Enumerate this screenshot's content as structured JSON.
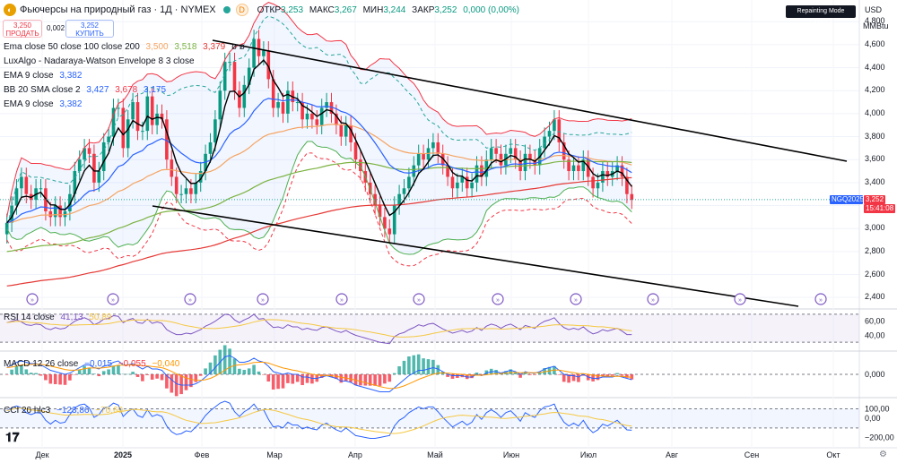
{
  "header": {
    "title": "Фьючерсы на природный газ · 1Д · NYMEX",
    "badge": "D",
    "open_label": "ОТКР",
    "open": "3,253",
    "high_label": "МАКС",
    "high": "3,267",
    "low_label": "МИН",
    "low": "3,244",
    "close_label": "ЗАКР",
    "close": "3,252",
    "change": "0,000 (0,00%)"
  },
  "trade": {
    "sell_price": "3,250",
    "sell_label": "ПРОДАТЬ",
    "spread": "0,002",
    "buy_price": "3,252",
    "buy_label": "КУПИТЬ"
  },
  "legends": {
    "ema": {
      "label": "Ema close 50 close 100 close 200",
      "v1": "3,500",
      "v2": "3,518",
      "v3": "3,379",
      "v4": "ø ø"
    },
    "luxalgo": {
      "label": "LuxAlgo - Nadaraya-Watson Envelope 8 3 close"
    },
    "ema9a": {
      "label": "EMA 9 close",
      "v1": "3,382"
    },
    "bb": {
      "label": "BB 20 SMA close 2",
      "v1": "3,427",
      "v2": "3,678",
      "v3": "3,175"
    },
    "ema9b": {
      "label": "EMA 9 close",
      "v1": "3,382"
    },
    "rsi": {
      "label": "RSI 14 close",
      "v1": "41,13",
      "v2": "50,89"
    },
    "macd": {
      "label": "MACD 12 26 close",
      "v1": "−0,015",
      "v2": "−0,055",
      "v3": "−0,040"
    },
    "cci": {
      "label": "CCI 20 hlc3",
      "v1": "−123,86",
      "v2": "−70,69"
    }
  },
  "top_right": {
    "repainting": "Repainting Mode Enabled",
    "currency": "USD",
    "unit": "MMBtu"
  },
  "price_tag": {
    "symbol": "NGQ2025",
    "price": "3,252",
    "countdown": "15:41:08"
  },
  "colors": {
    "up": "#089981",
    "down": "#f23645",
    "ema50": "#f5a462",
    "ema100": "#7cb342",
    "ema200": "#e53935",
    "ema9": "#2962ff",
    "bb": "#4caf50",
    "rsi": "#7e57c2",
    "macd": "#2962ff",
    "signal": "#ff9800"
  },
  "chart_data": [
    {
      "type": "candlestick",
      "title": "Фьючерсы на природный газ · 1Д · NYMEX",
      "ylabel": "MMBtu",
      "ylim": [
        2.3,
        4.95
      ],
      "y_ticks": [
        "2,400",
        "2,600",
        "2,800",
        "3,000",
        "3,200",
        "3,400",
        "3,600",
        "3,800",
        "4,000",
        "4,200",
        "4,400",
        "4,600",
        "4,800"
      ],
      "x_ticks": [
        "Дек",
        "2025",
        "Фев",
        "Мар",
        "Апр",
        "Май",
        "Июн",
        "Июл",
        "Авг",
        "Сен",
        "Окт"
      ],
      "close": [
        3.05,
        3.2,
        3.35,
        3.45,
        3.3,
        3.25,
        3.35,
        3.35,
        3.15,
        3.1,
        3.2,
        3.1,
        3.15,
        3.3,
        3.5,
        3.6,
        3.7,
        3.65,
        3.4,
        3.5,
        3.75,
        3.8,
        4.05,
        4.05,
        3.7,
        3.95,
        4.1,
        3.85,
        3.85,
        4.15,
        3.9,
        4.0,
        3.95,
        3.6,
        3.45,
        3.3,
        3.3,
        3.35,
        3.3,
        3.4,
        3.5,
        3.65,
        3.75,
        3.95,
        4.2,
        4.45,
        4.45,
        4.2,
        4.05,
        4.25,
        4.4,
        4.65,
        4.5,
        4.55,
        4.3,
        4.05,
        4.1,
        4.0,
        4.2,
        4.1,
        4.1,
        3.95,
        4.0,
        3.95,
        3.9,
        4.05,
        4.1,
        4.0,
        3.9,
        3.8,
        3.9,
        3.75,
        3.6,
        3.5,
        3.4,
        3.3,
        3.2,
        3.1,
        3.0,
        2.95,
        3.2,
        3.3,
        3.35,
        3.45,
        3.55,
        3.65,
        3.6,
        3.7,
        3.75,
        3.65,
        3.55,
        3.45,
        3.35,
        3.4,
        3.45,
        3.35,
        3.4,
        3.55,
        3.45,
        3.6,
        3.7,
        3.65,
        3.55,
        3.65,
        3.7,
        3.6,
        3.5,
        3.65,
        3.6,
        3.55,
        3.7,
        3.8,
        3.85,
        3.95,
        3.75,
        3.6,
        3.5,
        3.55,
        3.5,
        3.6,
        3.45,
        3.35,
        3.4,
        3.5,
        3.45,
        3.5,
        3.55,
        3.45,
        3.3,
        3.25
      ],
      "open": [
        2.95,
        3.05,
        3.2,
        3.35,
        3.45,
        3.3,
        3.25,
        3.35,
        3.35,
        3.15,
        3.1,
        3.2,
        3.1,
        3.15,
        3.3,
        3.5,
        3.6,
        3.7,
        3.65,
        3.4,
        3.5,
        3.75,
        3.8,
        4.05,
        4.05,
        3.7,
        3.95,
        4.1,
        3.85,
        3.85,
        4.15,
        3.9,
        4.0,
        3.95,
        3.6,
        3.45,
        3.3,
        3.3,
        3.35,
        3.3,
        3.4,
        3.5,
        3.65,
        3.75,
        3.95,
        4.2,
        4.45,
        4.45,
        4.2,
        4.05,
        4.25,
        4.4,
        4.65,
        4.5,
        4.55,
        4.3,
        4.05,
        4.1,
        4.0,
        4.2,
        4.1,
        4.1,
        3.95,
        4.0,
        3.95,
        3.9,
        4.05,
        4.1,
        4.0,
        3.9,
        3.8,
        3.9,
        3.75,
        3.6,
        3.5,
        3.4,
        3.3,
        3.2,
        3.1,
        3.0,
        2.95,
        3.2,
        3.3,
        3.35,
        3.45,
        3.55,
        3.65,
        3.6,
        3.7,
        3.75,
        3.65,
        3.55,
        3.45,
        3.35,
        3.4,
        3.45,
        3.35,
        3.4,
        3.55,
        3.45,
        3.6,
        3.7,
        3.65,
        3.55,
        3.65,
        3.7,
        3.6,
        3.5,
        3.65,
        3.6,
        3.55,
        3.7,
        3.8,
        3.85,
        3.95,
        3.75,
        3.6,
        3.5,
        3.55,
        3.5,
        3.6,
        3.45,
        3.35,
        3.4,
        3.5,
        3.45,
        3.5,
        3.55,
        3.45,
        3.3
      ]
    },
    {
      "type": "line",
      "title": "RSI 14 close",
      "ylim": [
        20,
        75
      ],
      "y_ticks": [
        "40,00",
        "60,00"
      ],
      "values": [
        58,
        60,
        62,
        59,
        55,
        54,
        56,
        55,
        50,
        48,
        51,
        49,
        50,
        55,
        60,
        63,
        65,
        62,
        55,
        58,
        63,
        64,
        68,
        67,
        58,
        62,
        64,
        58,
        57,
        63,
        57,
        59,
        57,
        48,
        44,
        41,
        41,
        43,
        42,
        45,
        48,
        53,
        56,
        60,
        65,
        70,
        69,
        62,
        58,
        62,
        65,
        70,
        63,
        64,
        57,
        51,
        52,
        50,
        55,
        52,
        52,
        48,
        50,
        48,
        47,
        51,
        52,
        49,
        46,
        44,
        47,
        43,
        40,
        38,
        36,
        34,
        32,
        30,
        29,
        28,
        38,
        42,
        44,
        48,
        51,
        55,
        53,
        56,
        57,
        53,
        49,
        46,
        43,
        45,
        47,
        44,
        46,
        51,
        47,
        53,
        56,
        54,
        50,
        54,
        56,
        52,
        48,
        54,
        52,
        50,
        56,
        60,
        62,
        65,
        57,
        51,
        48,
        50,
        48,
        52,
        46,
        42,
        44,
        48,
        46,
        48,
        50,
        46,
        41,
        41
      ]
    },
    {
      "type": "bar",
      "title": "MACD 12 26 close",
      "y_ticks": [
        "0,000"
      ],
      "values": [
        0.05,
        0.07,
        0.09,
        0.1,
        0.09,
        0.08,
        0.08,
        0.07,
        0.05,
        0.03,
        0.02,
        0.01,
        0.0,
        0.01,
        0.03,
        0.05,
        0.07,
        0.07,
        0.05,
        0.04,
        0.06,
        0.07,
        0.09,
        0.1,
        0.07,
        0.07,
        0.08,
        0.06,
        0.04,
        0.06,
        0.04,
        0.04,
        0.03,
        -0.01,
        -0.04,
        -0.07,
        -0.08,
        -0.08,
        -0.08,
        -0.07,
        -0.05,
        -0.02,
        0.01,
        0.05,
        0.09,
        0.13,
        0.14,
        0.12,
        0.09,
        0.09,
        0.1,
        0.12,
        0.1,
        0.09,
        0.06,
        0.02,
        0.01,
        0.0,
        0.01,
        0.0,
        0.0,
        -0.02,
        -0.02,
        -0.03,
        -0.03,
        -0.02,
        -0.01,
        -0.02,
        -0.03,
        -0.05,
        -0.05,
        -0.06,
        -0.08,
        -0.09,
        -0.1,
        -0.11,
        -0.12,
        -0.13,
        -0.13,
        -0.13,
        -0.1,
        -0.07,
        -0.04,
        -0.01,
        0.01,
        0.03,
        0.03,
        0.04,
        0.05,
        0.04,
        0.02,
        0.0,
        -0.01,
        -0.01,
        -0.01,
        -0.02,
        -0.02,
        0.0,
        -0.01,
        0.01,
        0.02,
        0.02,
        0.01,
        0.02,
        0.03,
        0.02,
        0.0,
        0.02,
        0.01,
        0.01,
        0.02,
        0.04,
        0.05,
        0.06,
        0.03,
        0.0,
        -0.01,
        -0.01,
        -0.02,
        0.0,
        -0.02,
        -0.03,
        -0.03,
        -0.02,
        -0.02,
        -0.02,
        -0.01,
        -0.02,
        -0.03,
        -0.04
      ]
    },
    {
      "type": "line",
      "title": "CCI 20 hlc3",
      "ylim": [
        -280,
        180
      ],
      "y_ticks": [
        "100,00",
        "0,00",
        "−200,00"
      ],
      "values": [
        80,
        110,
        130,
        110,
        60,
        40,
        60,
        55,
        -20,
        -60,
        -20,
        -50,
        -40,
        40,
        110,
        140,
        150,
        110,
        10,
        40,
        110,
        120,
        160,
        140,
        20,
        70,
        100,
        30,
        10,
        90,
        20,
        40,
        20,
        -80,
        -140,
        -170,
        -160,
        -130,
        -140,
        -90,
        -40,
        30,
        80,
        120,
        160,
        180,
        160,
        70,
        20,
        70,
        100,
        150,
        80,
        90,
        -10,
        -90,
        -80,
        -100,
        -40,
        -70,
        -70,
        -110,
        -90,
        -110,
        -120,
        -70,
        -50,
        -90,
        -120,
        -140,
        -100,
        -140,
        -180,
        -190,
        -200,
        -210,
        -210,
        -200,
        -190,
        -180,
        -80,
        -20,
        10,
        60,
        90,
        120,
        100,
        120,
        120,
        70,
        10,
        -40,
        -90,
        -60,
        -30,
        -70,
        -40,
        40,
        -10,
        60,
        90,
        60,
        10,
        60,
        80,
        30,
        -30,
        60,
        30,
        10,
        80,
        120,
        130,
        150,
        40,
        -40,
        -80,
        -50,
        -80,
        -20,
        -100,
        -150,
        -120,
        -60,
        -80,
        -50,
        -20,
        -70,
        -120,
        -124
      ]
    }
  ]
}
